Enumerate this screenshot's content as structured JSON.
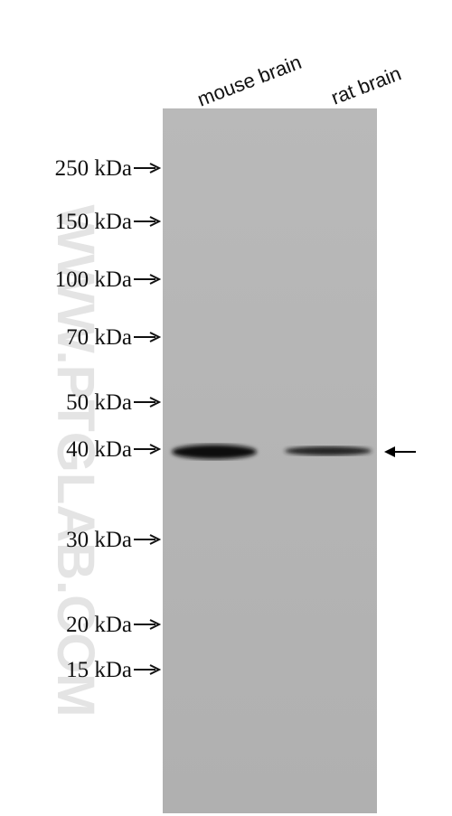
{
  "lanes": [
    "mouse brain",
    "rat brain"
  ],
  "markers": [
    "250 kDa",
    "150 kDa",
    "100 kDa",
    "70 kDa",
    "50 kDa",
    "40 kDa",
    "30 kDa",
    "20 kDa",
    "15 kDa"
  ],
  "watermark": "WWW.PTGLAB.COM"
}
